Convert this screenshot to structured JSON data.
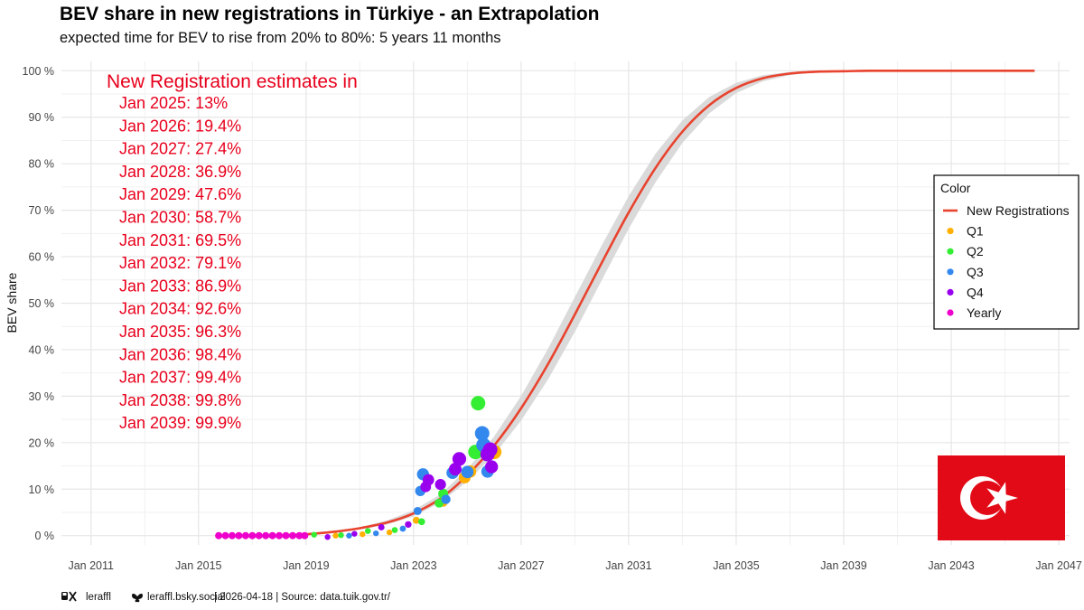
{
  "title": "BEV share in new registrations in Türkiye - an Extrapolation",
  "subtitle": "expected time for BEV to rise from 20% to 80%: 5 years 11 months",
  "caption": {
    "x_handle": "leraffl",
    "bsky_handle": "leraffl.bsky.social",
    "rest": " | 2026-04-18 | Source: data.tuik.gov.tr/"
  },
  "annotation": {
    "heading": "New Registration estimates in",
    "lines": [
      "Jan 2025: 13%",
      "Jan 2026: 19.4%",
      "Jan 2027: 27.4%",
      "Jan 2028: 36.9%",
      "Jan 2029: 47.6%",
      "Jan 2030: 58.7%",
      "Jan 2031: 69.5%",
      "Jan 2032: 79.1%",
      "Jan 2033: 86.9%",
      "Jan 2034: 92.6%",
      "Jan 2035: 96.3%",
      "Jan 2036: 98.4%",
      "Jan 2037: 99.4%",
      "Jan 2038: 99.8%",
      "Jan 2039: 99.9%"
    ]
  },
  "legend": {
    "title": "Color",
    "placement": "right",
    "items": [
      {
        "label": "New Registrations",
        "color": "#e8432e",
        "kind": "line"
      },
      {
        "label": "Q1",
        "color": "#ffb000",
        "kind": "point"
      },
      {
        "label": "Q2",
        "color": "#33ee33",
        "kind": "point"
      },
      {
        "label": "Q3",
        "color": "#3388ee",
        "kind": "point"
      },
      {
        "label": "Q4",
        "color": "#9900ee",
        "kind": "point"
      },
      {
        "label": "Yearly",
        "color": "#ee00cc",
        "kind": "point"
      }
    ]
  },
  "colors": {
    "curve": "#e8432e",
    "ribbon": "#d6d6d6",
    "annotation": "#e8001c",
    "flag_red": "#e30a17",
    "flag_white": "#ffffff",
    "grid": "#e6e6e6"
  },
  "icons": [
    "x-logo-icon",
    "butterfly-icon",
    "turkey-flag-icon"
  ],
  "chart_data": {
    "type": "scatter",
    "title": "BEV share in new registrations in Türkiye - an Extrapolation",
    "subtitle": "expected time for BEV to rise from 20% to 80%: 5 years 11 months",
    "xlabel": "",
    "ylabel": "BEV share",
    "xlim": [
      2009.9,
      2047.4
    ],
    "ylim": [
      -2,
      102
    ],
    "grid": true,
    "x_ticks": [
      2011,
      2015,
      2019,
      2023,
      2027,
      2031,
      2035,
      2039,
      2043,
      2047
    ],
    "x_tick_labels": [
      "Jan 2011",
      "Jan 2015",
      "Jan 2019",
      "Jan 2023",
      "Jan 2027",
      "Jan 2031",
      "Jan 2035",
      "Jan 2039",
      "Jan 2043",
      "Jan 2047"
    ],
    "y_ticks": [
      0,
      10,
      20,
      30,
      40,
      50,
      60,
      70,
      80,
      90,
      100
    ],
    "y_tick_labels": [
      "0 %",
      "10 %",
      "20 %",
      "30 %",
      "40 %",
      "50 %",
      "60 %",
      "70 %",
      "80 %",
      "90 %",
      "100 %"
    ],
    "fit_curve": {
      "name": "New Registrations",
      "x": [
        2018.0,
        2019.0,
        2020.0,
        2021.0,
        2022.0,
        2023.0,
        2024.0,
        2025.0,
        2026.0,
        2027.0,
        2028.0,
        2029.0,
        2030.0,
        2031.0,
        2032.0,
        2033.0,
        2034.0,
        2035.0,
        2036.0,
        2037.0,
        2038.0,
        2039.0,
        2040.0,
        2042.0,
        2044.0,
        2046.1
      ],
      "y": [
        0.05,
        0.3,
        0.8,
        1.6,
        2.8,
        4.8,
        8.0,
        13.0,
        19.4,
        27.4,
        36.9,
        47.6,
        58.7,
        69.5,
        79.1,
        86.9,
        92.6,
        96.3,
        98.4,
        99.4,
        99.8,
        99.9,
        100.0,
        100.0,
        100.0,
        100.0
      ],
      "band_halfwidth": [
        0,
        0,
        0,
        0.1,
        0.2,
        0.3,
        0.4,
        0.6,
        0.9,
        1.2,
        1.5,
        1.7,
        1.7,
        1.6,
        1.4,
        1.1,
        0.8,
        0.5,
        0.3,
        0.15,
        0.05,
        0,
        0,
        0,
        0,
        0
      ]
    },
    "series": [
      {
        "name": "Q1",
        "x": [
          2020.1,
          2021.1,
          2022.1,
          2023.1,
          2024.1,
          2024.9,
          2025.1,
          2026.0
        ],
        "y": [
          0.0,
          0.3,
          0.7,
          3.3,
          7.2,
          12.5,
          13.8,
          18.0
        ]
      },
      {
        "name": "Q2",
        "x": [
          2019.3,
          2020.3,
          2021.3,
          2022.3,
          2023.3,
          2023.95,
          2024.1,
          2025.3,
          2025.4
        ],
        "y": [
          0.2,
          0.1,
          1.0,
          1.2,
          3.0,
          7.0,
          9.0,
          18.0,
          28.5
        ]
      },
      {
        "name": "Q3",
        "x": [
          2020.6,
          2021.6,
          2022.6,
          2023.15,
          2023.25,
          2023.35,
          2024.2,
          2024.45,
          2025.0,
          2025.55,
          2025.6,
          2025.75
        ],
        "y": [
          0.0,
          0.5,
          1.5,
          5.3,
          9.6,
          13.2,
          7.8,
          13.5,
          13.7,
          22.0,
          19.5,
          13.8
        ]
      },
      {
        "name": "Q4",
        "x": [
          2019.8,
          2020.8,
          2021.8,
          2022.8,
          2023.45,
          2023.55,
          2024.0,
          2024.55,
          2024.7,
          2025.75,
          2025.85,
          2025.9
        ],
        "y": [
          -0.3,
          0.4,
          1.8,
          2.4,
          10.5,
          12.0,
          11.0,
          14.3,
          16.5,
          17.5,
          18.5,
          14.8
        ]
      },
      {
        "name": "Yearly",
        "x": [
          2015.75,
          2016.0,
          2016.25,
          2016.5,
          2016.75,
          2017.0,
          2017.25,
          2017.5,
          2017.75,
          2018.0,
          2018.25,
          2018.5,
          2018.75,
          2018.95
        ],
        "y": [
          0,
          0,
          0,
          0,
          0,
          0,
          0,
          0,
          0,
          0,
          0,
          0,
          0,
          0
        ]
      }
    ]
  }
}
